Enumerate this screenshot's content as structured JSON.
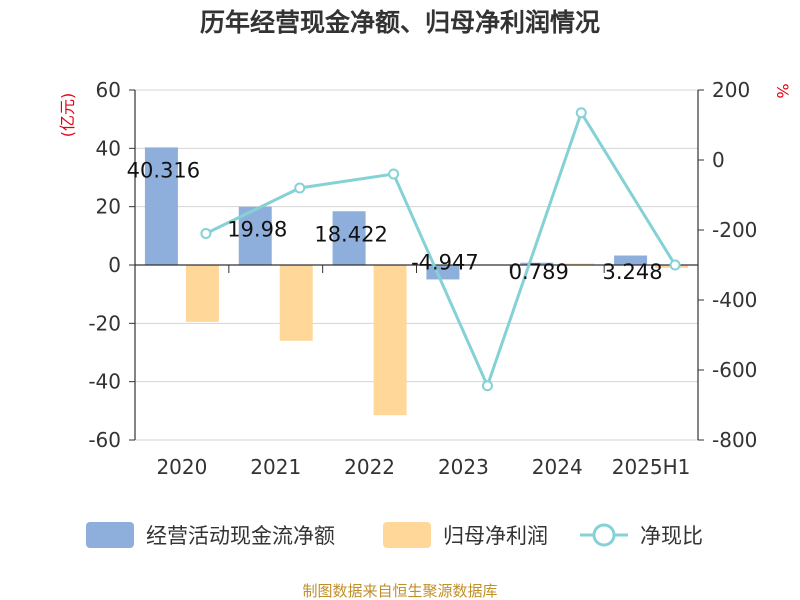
{
  "chart_data": {
    "type": "bar",
    "title": "历年经营现金净额、归母净利润情况",
    "categories": [
      "2020",
      "2021",
      "2022",
      "2023",
      "2024",
      "2025H1"
    ],
    "series": [
      {
        "name": "经营活动现金流净额",
        "type": "bar",
        "axis": "left",
        "color": "#8eaedb",
        "values": [
          40.316,
          19.98,
          18.422,
          -4.947,
          0.789,
          3.248
        ],
        "labels": [
          "40.316",
          "19.98",
          "18.422",
          "-4.947",
          "0.789",
          "3.248"
        ]
      },
      {
        "name": "归母净利润",
        "type": "bar",
        "axis": "left",
        "color": "#ffd899",
        "values": [
          -19.5,
          -26.0,
          -51.5,
          0.2,
          0.5,
          -1.0
        ]
      },
      {
        "name": "净现比",
        "type": "line",
        "axis": "right",
        "color": "#84d2d6",
        "values": [
          -210,
          -80,
          -40,
          -645,
          135,
          -300
        ]
      }
    ],
    "y_left": {
      "unit": "(亿元)",
      "min": -60,
      "max": 60,
      "ticks": [
        60,
        40,
        20,
        0,
        -20,
        -40,
        -60
      ]
    },
    "y_right": {
      "unit": "%",
      "min": -800,
      "max": 200,
      "ticks": [
        200,
        0,
        -200,
        -400,
        -600,
        -800
      ]
    },
    "grid": true,
    "legend_position": "bottom",
    "source": "制图数据来自恒生聚源数据库"
  }
}
